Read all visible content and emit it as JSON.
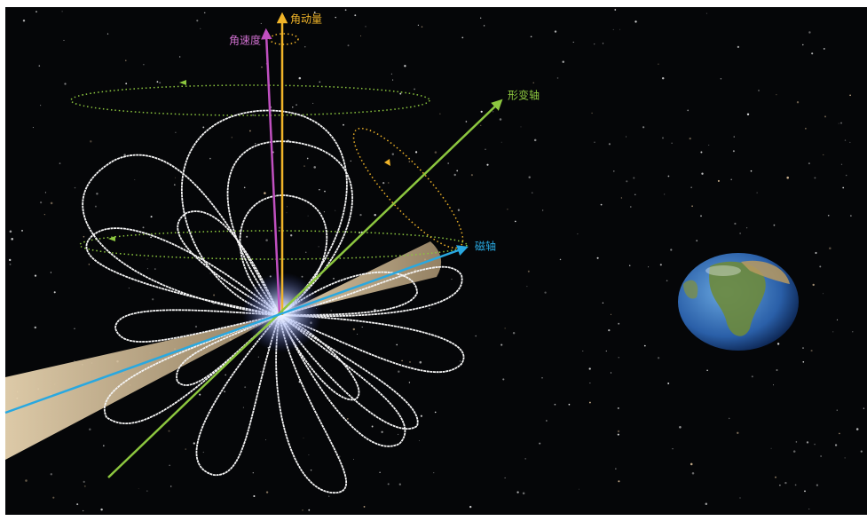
{
  "labels": {
    "angular_momentum": "角动量",
    "angular_velocity": "角速度",
    "deformation_axis": "形变轴",
    "magnetic_axis": "磁轴"
  }
}
